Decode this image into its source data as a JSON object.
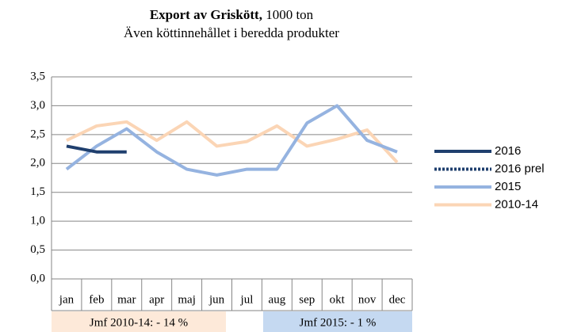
{
  "chart_data": {
    "type": "line",
    "title": "Export av Griskött,",
    "title_suffix": "1000 ton",
    "subtitle": "Även köttinnehållet i beredda produkter",
    "categories": [
      "jan",
      "feb",
      "mar",
      "apr",
      "maj",
      "jun",
      "jul",
      "aug",
      "sep",
      "okt",
      "nov",
      "dec"
    ],
    "series": [
      {
        "name": "2016",
        "color": "#1f3f6e",
        "linestyle": "solid",
        "values": [
          2.3,
          2.2,
          2.2,
          null,
          null,
          null,
          null,
          null,
          null,
          null,
          null,
          null
        ]
      },
      {
        "name": "2016 prel",
        "color": "#1f3f6e",
        "linestyle": "dashed",
        "values": [
          null,
          null,
          null,
          null,
          null,
          null,
          null,
          null,
          null,
          null,
          null,
          null
        ]
      },
      {
        "name": "2015",
        "color": "#95b3e0",
        "linestyle": "solid",
        "values": [
          1.9,
          2.3,
          2.6,
          2.2,
          1.9,
          1.8,
          1.9,
          1.9,
          2.7,
          3.0,
          2.4,
          2.2
        ]
      },
      {
        "name": "2010-14",
        "color": "#fbd5b5",
        "linestyle": "solid",
        "values": [
          2.4,
          2.65,
          2.72,
          2.4,
          2.72,
          2.3,
          2.38,
          2.65,
          2.3,
          2.42,
          2.58,
          2.02
        ]
      }
    ],
    "ylim": [
      0,
      3.5
    ],
    "yticks": [
      {
        "value": 0,
        "label": "0,0"
      },
      {
        "value": 0.5,
        "label": "0,5"
      },
      {
        "value": 1,
        "label": "1,0"
      },
      {
        "value": 1.5,
        "label": "1,5"
      },
      {
        "value": 2,
        "label": "2,0"
      },
      {
        "value": 2.5,
        "label": "2,5"
      },
      {
        "value": 3,
        "label": "3,0"
      },
      {
        "value": 3.5,
        "label": "3,5"
      }
    ],
    "grid": true,
    "legend": "right",
    "annotations": [
      {
        "text": "Jmf 2010-14: - 14 %",
        "color": "#fde9d9"
      },
      {
        "text": "Jmf 2015: - 1 %",
        "color": "#c5d9f1"
      }
    ]
  }
}
